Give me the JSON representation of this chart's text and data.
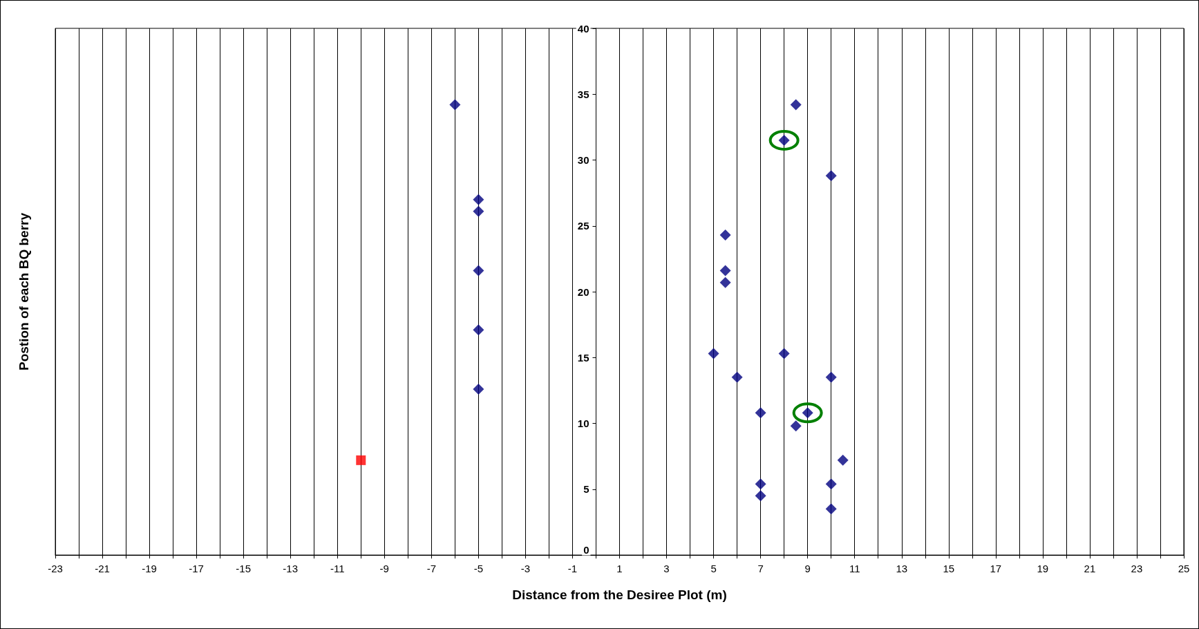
{
  "chart_data": {
    "type": "scatter",
    "xlabel": "Distance from the Desiree Plot (m)",
    "ylabel": "Postion of each BQ berry",
    "xlim": [
      -23,
      25
    ],
    "ylim": [
      0,
      40
    ],
    "xticks": [
      -23,
      {
        "value": -22,
        "label": null
      },
      -21,
      {
        "value": -20,
        "label": null
      },
      -19,
      {
        "value": -18,
        "label": null
      },
      -17,
      {
        "value": -16,
        "label": null
      },
      -15,
      {
        "value": -14,
        "label": null
      },
      -13,
      {
        "value": -12,
        "label": null
      },
      -11,
      {
        "value": -10,
        "label": null
      },
      -9,
      {
        "value": -8,
        "label": null
      },
      -7,
      {
        "value": -6,
        "label": null
      },
      -5,
      {
        "value": -4,
        "label": null
      },
      -3,
      {
        "value": -2,
        "label": null
      },
      -1,
      {
        "value": 0,
        "label": null
      },
      1,
      {
        "value": 2,
        "label": null
      },
      3,
      {
        "value": 4,
        "label": null
      },
      5,
      {
        "value": 6,
        "label": null
      },
      7,
      {
        "value": 8,
        "label": null
      },
      9,
      {
        "value": 10,
        "label": null
      },
      11,
      {
        "value": 12,
        "label": null
      },
      13,
      {
        "value": 14,
        "label": null
      },
      15,
      {
        "value": 16,
        "label": null
      },
      17,
      {
        "value": 18,
        "label": null
      },
      19,
      {
        "value": 20,
        "label": null
      },
      21,
      {
        "value": 22,
        "label": null
      },
      23,
      {
        "value": 24,
        "label": null
      },
      25
    ],
    "yticks": [
      0,
      5,
      10,
      15,
      20,
      25,
      30,
      35,
      40
    ],
    "grid": "x",
    "series": [
      {
        "color": "#000080",
        "marker": "diamond",
        "x": [
          -6,
          -5,
          -5,
          -5,
          -5,
          -5,
          8.5,
          10,
          5.5,
          5.5,
          5.5,
          5,
          8,
          6,
          10,
          7,
          8.5,
          10.5,
          7,
          10,
          7,
          10
        ],
        "values": [
          34.2,
          27,
          26.1,
          21.6,
          17.1,
          12.6,
          34.2,
          28.8,
          24.3,
          21.6,
          20.7,
          15.3,
          15.3,
          13.5,
          13.5,
          10.8,
          9.8,
          7.2,
          5.4,
          5.4,
          4.5,
          3.5
        ]
      },
      {
        "color": "#ff0000",
        "marker": "square",
        "x": [
          -10
        ],
        "values": [
          7.2
        ]
      },
      {
        "color": "#000080",
        "marker": "diamond",
        "x": [
          8,
          9
        ],
        "values": [
          31.5,
          10.8
        ]
      }
    ]
  }
}
